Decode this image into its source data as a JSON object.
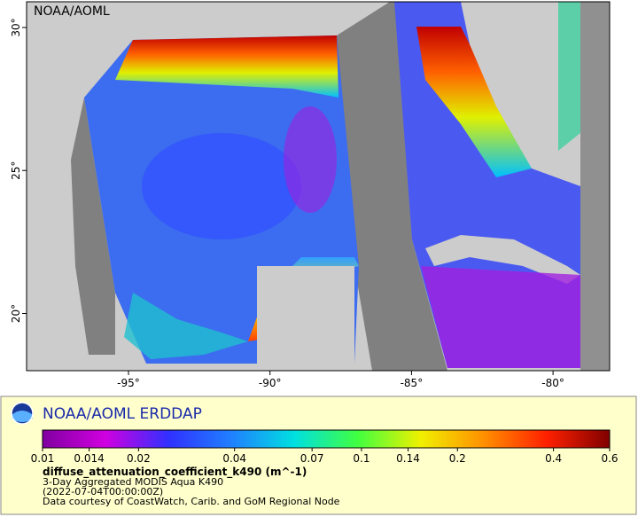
{
  "map": {
    "watermark": "NOAA/AOML",
    "xlim": [
      -98.6,
      -78
    ],
    "ylim": [
      18,
      30.9
    ],
    "xticks": [
      {
        "value": -95,
        "label": "-95°"
      },
      {
        "value": -90,
        "label": "-90°"
      },
      {
        "value": -85,
        "label": "-85°"
      },
      {
        "value": -80,
        "label": "-80°"
      }
    ],
    "yticks": [
      {
        "value": 20,
        "label": "20°"
      },
      {
        "value": 25,
        "label": "25°"
      },
      {
        "value": 30,
        "label": "30°"
      }
    ]
  },
  "legend": {
    "title": "NOAA/AOML ERDDAP",
    "colorbar": {
      "scale": "log",
      "lim": [
        0.01,
        0.6
      ],
      "ticks": [
        0.01,
        0.014,
        0.02,
        0.04,
        0.07,
        0.1,
        0.14,
        0.2,
        0.4,
        0.6
      ],
      "colors": [
        "#8000a0",
        "#d000e0",
        "#3030ff",
        "#2080ff",
        "#00e0e0",
        "#40ff40",
        "#f0f000",
        "#ff9000",
        "#ff2000",
        "#800000"
      ]
    },
    "variable": "diffuse_attenuation_coefficient_k490 (m^-1)",
    "lines": [
      "3-Day Aggregated MODIS Aqua K490",
      "(2022-07-04T00:00:00Z)",
      "Data courtesy of CoastWatch, Carib. and GoM Regional Node"
    ]
  }
}
